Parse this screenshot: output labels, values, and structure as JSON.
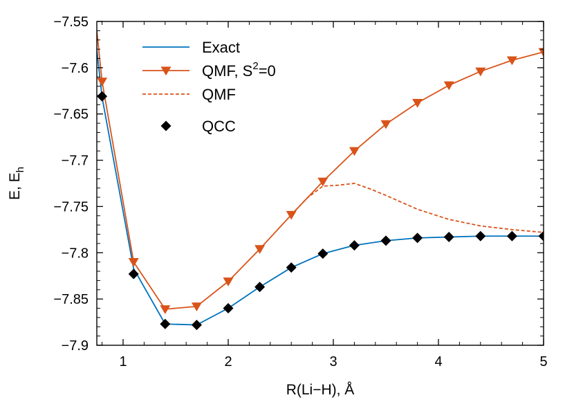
{
  "chart_data": {
    "type": "line",
    "xlabel": "R(Li−H), Å",
    "ylabel": "E, E",
    "ylabel_sub": "h",
    "xlim": [
      0.75,
      5.0
    ],
    "ylim": [
      -7.9,
      -7.55
    ],
    "x_ticks": [
      1,
      2,
      3,
      4,
      5
    ],
    "x_tick_labels": [
      "1",
      "2",
      "3",
      "4",
      "5"
    ],
    "y_ticks": [
      -7.9,
      -7.85,
      -7.8,
      -7.75,
      -7.7,
      -7.65,
      -7.6,
      -7.55
    ],
    "y_tick_labels": [
      "−7.9",
      "−7.85",
      "−7.8",
      "−7.75",
      "−7.7",
      "−7.65",
      "−7.6",
      "−7.55"
    ],
    "grid": false,
    "legend_position": "top-left",
    "series": [
      {
        "name": "Exact",
        "style": "solid",
        "marker": "none",
        "color": "#0072bd",
        "x": [
          0.72,
          0.8,
          1.1,
          1.4,
          1.7,
          2.0,
          2.3,
          2.6,
          2.9,
          3.2,
          3.5,
          3.8,
          4.1,
          4.4,
          4.7,
          5.0
        ],
        "y": [
          -7.55,
          -7.632,
          -7.817,
          -7.877,
          -7.878,
          -7.86,
          -7.837,
          -7.816,
          -7.801,
          -7.792,
          -7.787,
          -7.784,
          -7.783,
          -7.782,
          -7.782,
          -7.782
        ]
      },
      {
        "name": "QMF, S",
        "name_sup": "2",
        "name_tail": "=0",
        "style": "solid",
        "marker": "triangle-down",
        "color": "#d95319",
        "x": [
          0.75,
          0.8,
          1.1,
          1.4,
          1.7,
          2.0,
          2.3,
          2.6,
          2.9,
          3.2,
          3.5,
          3.8,
          4.1,
          4.4,
          4.7,
          5.0
        ],
        "y": [
          -7.56,
          -7.615,
          -7.81,
          -7.861,
          -7.858,
          -7.831,
          -7.796,
          -7.759,
          -7.723,
          -7.69,
          -7.661,
          -7.638,
          -7.619,
          -7.604,
          -7.592,
          -7.583
        ]
      },
      {
        "name": "QMF",
        "style": "dashed",
        "marker": "none",
        "color": "#d95319",
        "x": [
          2.6,
          2.75,
          2.9,
          3.05,
          3.2,
          3.35,
          3.5,
          3.8,
          4.1,
          4.4,
          4.7,
          5.0
        ],
        "y": [
          -7.759,
          -7.741,
          -7.728,
          -7.727,
          -7.725,
          -7.731,
          -7.738,
          -7.753,
          -7.764,
          -7.771,
          -7.775,
          -7.778
        ]
      },
      {
        "name": "QCC",
        "style": "none",
        "marker": "diamond",
        "color": "#000000",
        "x": [
          0.8,
          1.1,
          1.4,
          1.7,
          2.0,
          2.3,
          2.6,
          2.9,
          3.2,
          3.5,
          3.8,
          4.1,
          4.4,
          4.7,
          5.0
        ],
        "y": [
          -7.631,
          -7.823,
          -7.877,
          -7.878,
          -7.86,
          -7.837,
          -7.816,
          -7.801,
          -7.792,
          -7.787,
          -7.784,
          -7.783,
          -7.782,
          -7.782,
          -7.782
        ]
      }
    ]
  }
}
